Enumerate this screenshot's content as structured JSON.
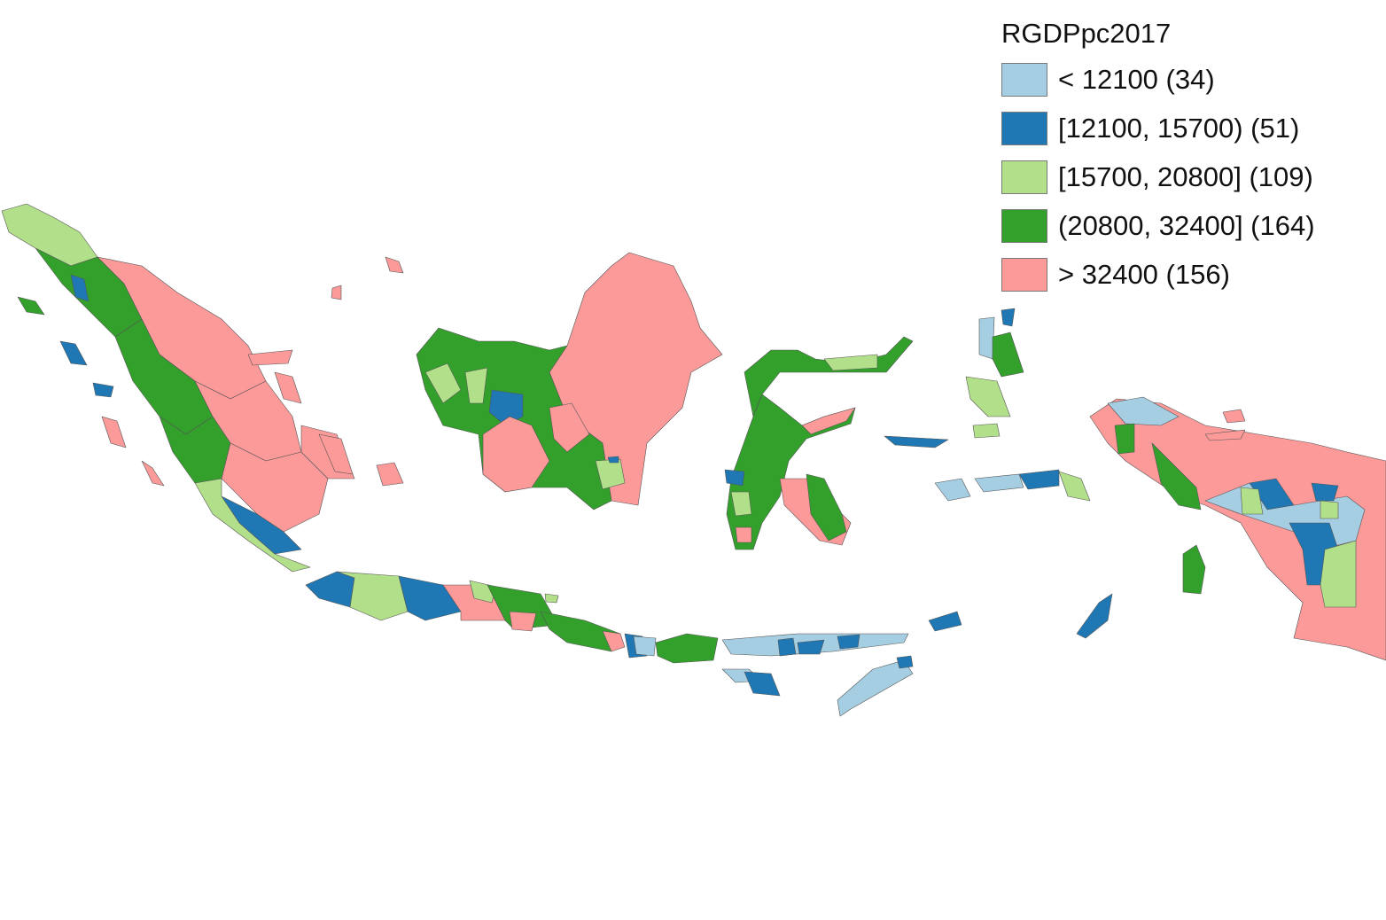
{
  "legend": {
    "title": "RGDPpc2017",
    "classes": [
      {
        "label": "< 12100 (34)",
        "color": "#a6cee3"
      },
      {
        "label": "[12100, 15700) (51)",
        "color": "#1f78b4"
      },
      {
        "label": "[15700, 20800] (109)",
        "color": "#b2df8a"
      },
      {
        "label": "(20800, 32400] (164)",
        "color": "#33a02c"
      },
      {
        "label": "> 32400 (156)",
        "color": "#fb9a99"
      }
    ]
  }
}
